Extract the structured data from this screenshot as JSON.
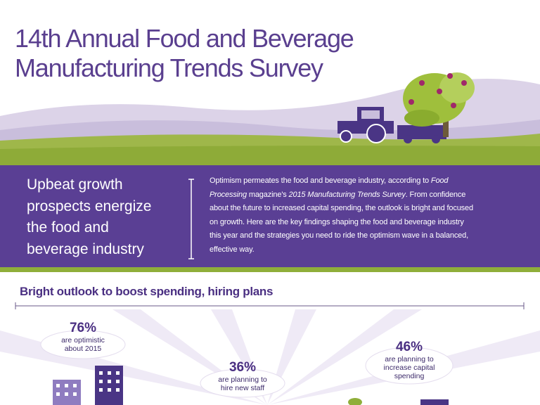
{
  "header": {
    "title": [
      "14th Annual Food and Beverage",
      "Manufacturing Trends Survey"
    ]
  },
  "intro": {
    "heading": [
      "Upbeat growth",
      "prospects energize",
      "the food and",
      "beverage industry"
    ],
    "paragraph": [
      [
        {
          "text": "Optimism permeates the food and beverage industry, according to ",
          "italic": false
        },
        {
          "text": "Food",
          "italic": true
        }
      ],
      [
        {
          "text": "Processing",
          "italic": true
        },
        {
          "text": " magazine's ",
          "italic": false
        },
        {
          "text": "2015 Manufacturing Trends Survey",
          "italic": true
        },
        {
          "text": ". From confidence",
          "italic": false
        }
      ],
      [
        {
          "text": "about the future to increased capital spending, the outlook is bright and focused",
          "italic": false
        }
      ],
      [
        {
          "text": "on growth. Here are the key findings shaping the food and beverage industry",
          "italic": false
        }
      ],
      [
        {
          "text": "this year and the strategies you need to ride the optimism wave in a balanced,",
          "italic": false
        }
      ],
      [
        {
          "text": "effective way.",
          "italic": false
        }
      ]
    ]
  },
  "section": {
    "heading": "Bright outlook to boost spending, hiring plans",
    "stats": [
      {
        "value": "76%",
        "label": [
          "are optimistic",
          "about 2015"
        ]
      },
      {
        "value": "36%",
        "label": [
          "are planning to",
          "hire new staff"
        ]
      },
      {
        "value": "46%",
        "label": [
          "are planning to",
          "increase capital",
          "spending"
        ]
      }
    ]
  }
}
